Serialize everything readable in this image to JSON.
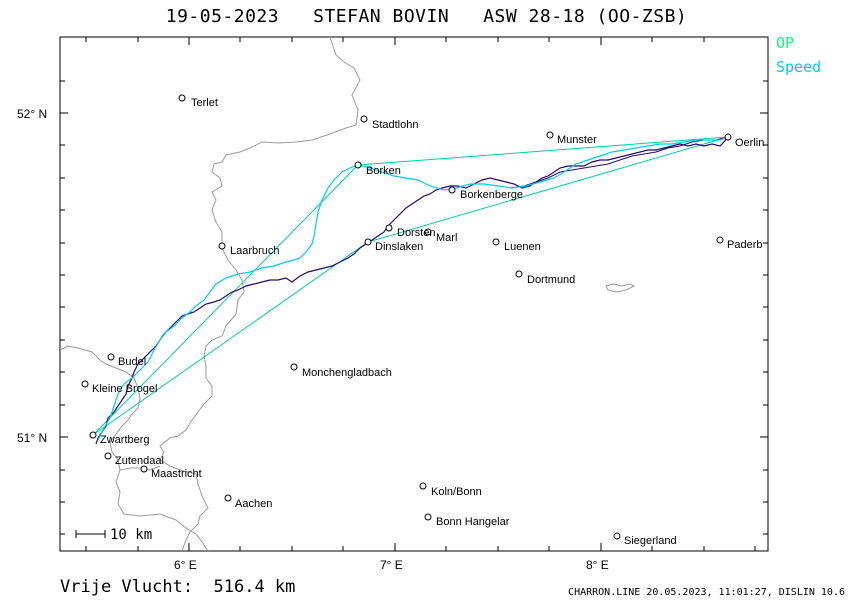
{
  "header": {
    "date": "19-05-2023",
    "pilot": "STEFAN BOVIN",
    "glider": "ASW 28-18 (OO-ZSB)"
  },
  "legend": {
    "op": "OP",
    "speed": "Speed"
  },
  "colors": {
    "op": "#00ff7f",
    "speed": "#00ccee",
    "track": "#2a0a6e",
    "border": "#999999",
    "frame": "#000000"
  },
  "axes": {
    "lat_labels": [
      "52° N",
      "51° N"
    ],
    "lon_labels": [
      "6° E",
      "7° E",
      "8° E"
    ]
  },
  "cities": [
    "Terlet",
    "Stadtlohn",
    "Munster",
    "Oerlin",
    "Borken",
    "Borkenberge",
    "Dorsten",
    "Marl",
    "Dinslaken",
    "Laarbruch",
    "Luenen",
    "Paderb",
    "Dortmund",
    "Budel",
    "Kleine Brogel",
    "Monchengladbach",
    "Zwartberg",
    "Zutendaal",
    "Maastricht",
    "Aachen",
    "Koln/Bonn",
    "Bonn Hangelar",
    "Siegerland"
  ],
  "scale": {
    "label": "10 km"
  },
  "footer": {
    "distance": "Vrije Vlucht:  516.4 km",
    "meta": "CHARRON.LINE 20.05.2023, 11:01:27, DISLIN 10.6"
  }
}
